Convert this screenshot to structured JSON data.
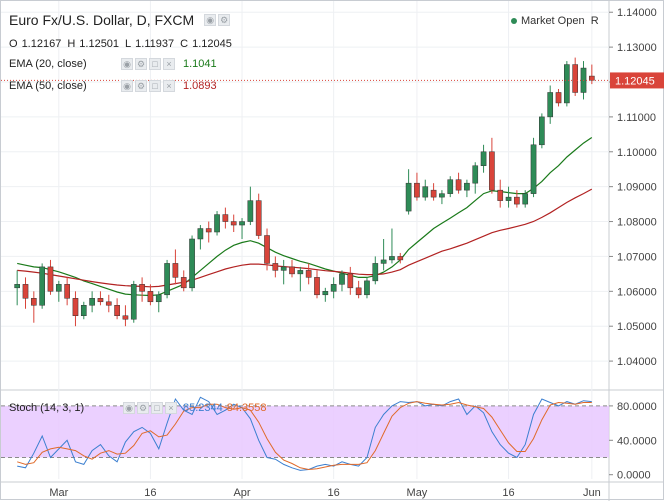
{
  "header": {
    "title": "Euro Fx/U.S. Dollar, D, FXCM",
    "market_status": "Market Open",
    "market_status_suffix": "R"
  },
  "ohlc": {
    "o_label": "O",
    "o": "1.12167",
    "h_label": "H",
    "h": "1.12501",
    "l_label": "L",
    "l": "1.11937",
    "c_label": "C",
    "c": "1.12045"
  },
  "indicators": {
    "ema20": {
      "label": "EMA (20, close)",
      "value": "1.1041",
      "color": "#1a7a1a"
    },
    "ema50": {
      "label": "EMA (50, close)",
      "value": "1.0893",
      "color": "#b22222"
    },
    "stoch": {
      "label": "Stoch (14, 3, 1)",
      "k": "85.2344",
      "d": "84.3558",
      "k_color": "#3b7fd0",
      "d_color": "#e06a2a"
    }
  },
  "price_label": "1.12045",
  "colors": {
    "up": "#2e8b57",
    "down": "#d9443a",
    "stoch_band": "#e7c8ff",
    "price_tag": "#d9443a"
  },
  "chart_data": [
    {
      "type": "candlestick",
      "title": "Euro Fx/U.S. Dollar, D, FXCM",
      "y_ticks": [
        "1.04000",
        "1.05000",
        "1.06000",
        "1.07000",
        "1.08000",
        "1.09000",
        "1.10000",
        "1.11000",
        "1.12000",
        "1.13000",
        "1.14000"
      ],
      "ylim": [
        1.032,
        1.1415
      ],
      "x_ticks": [
        "Mar",
        "16",
        "Apr",
        "16",
        "May",
        "16",
        "Jun"
      ],
      "candles": [
        [
          1.061,
          1.066,
          1.056,
          1.062
        ],
        [
          1.062,
          1.064,
          1.055,
          1.058
        ],
        [
          1.058,
          1.06,
          1.051,
          1.056
        ],
        [
          1.056,
          1.068,
          1.055,
          1.067
        ],
        [
          1.067,
          1.069,
          1.059,
          1.06
        ],
        [
          1.06,
          1.063,
          1.057,
          1.062
        ],
        [
          1.062,
          1.064,
          1.056,
          1.058
        ],
        [
          1.058,
          1.06,
          1.05,
          1.053
        ],
        [
          1.053,
          1.057,
          1.052,
          1.056
        ],
        [
          1.056,
          1.06,
          1.054,
          1.058
        ],
        [
          1.058,
          1.06,
          1.056,
          1.057
        ],
        [
          1.057,
          1.059,
          1.054,
          1.056
        ],
        [
          1.056,
          1.058,
          1.052,
          1.053
        ],
        [
          1.053,
          1.056,
          1.05,
          1.052
        ],
        [
          1.052,
          1.063,
          1.051,
          1.062
        ],
        [
          1.062,
          1.064,
          1.057,
          1.06
        ],
        [
          1.06,
          1.062,
          1.056,
          1.057
        ],
        [
          1.057,
          1.06,
          1.054,
          1.059
        ],
        [
          1.059,
          1.069,
          1.058,
          1.068
        ],
        [
          1.068,
          1.072,
          1.062,
          1.064
        ],
        [
          1.064,
          1.066,
          1.06,
          1.061
        ],
        [
          1.061,
          1.076,
          1.06,
          1.075
        ],
        [
          1.075,
          1.079,
          1.072,
          1.078
        ],
        [
          1.078,
          1.08,
          1.074,
          1.077
        ],
        [
          1.077,
          1.083,
          1.076,
          1.082
        ],
        [
          1.082,
          1.084,
          1.078,
          1.08
        ],
        [
          1.08,
          1.082,
          1.077,
          1.079
        ],
        [
          1.079,
          1.081,
          1.075,
          1.08
        ],
        [
          1.08,
          1.09,
          1.079,
          1.086
        ],
        [
          1.086,
          1.088,
          1.075,
          1.076
        ],
        [
          1.076,
          1.078,
          1.066,
          1.068
        ],
        [
          1.068,
          1.07,
          1.064,
          1.066
        ],
        [
          1.066,
          1.069,
          1.062,
          1.067
        ],
        [
          1.067,
          1.069,
          1.064,
          1.065
        ],
        [
          1.065,
          1.067,
          1.06,
          1.066
        ],
        [
          1.066,
          1.068,
          1.062,
          1.064
        ],
        [
          1.064,
          1.066,
          1.058,
          1.059
        ],
        [
          1.059,
          1.061,
          1.057,
          1.06
        ],
        [
          1.06,
          1.064,
          1.058,
          1.062
        ],
        [
          1.062,
          1.066,
          1.06,
          1.065
        ],
        [
          1.065,
          1.067,
          1.059,
          1.061
        ],
        [
          1.061,
          1.063,
          1.058,
          1.059
        ],
        [
          1.059,
          1.064,
          1.058,
          1.063
        ],
        [
          1.063,
          1.07,
          1.062,
          1.068
        ],
        [
          1.068,
          1.075,
          1.066,
          1.069
        ],
        [
          1.069,
          1.078,
          1.068,
          1.07
        ],
        [
          1.07,
          1.071,
          1.068,
          1.069
        ],
        [
          1.083,
          1.095,
          1.082,
          1.091
        ],
        [
          1.091,
          1.094,
          1.086,
          1.087
        ],
        [
          1.087,
          1.092,
          1.086,
          1.09
        ],
        [
          1.089,
          1.091,
          1.086,
          1.087
        ],
        [
          1.087,
          1.089,
          1.085,
          1.088
        ],
        [
          1.088,
          1.093,
          1.087,
          1.092
        ],
        [
          1.092,
          1.094,
          1.088,
          1.089
        ],
        [
          1.089,
          1.092,
          1.087,
          1.091
        ],
        [
          1.091,
          1.097,
          1.088,
          1.096
        ],
        [
          1.096,
          1.102,
          1.094,
          1.1
        ],
        [
          1.1,
          1.104,
          1.088,
          1.089
        ],
        [
          1.089,
          1.092,
          1.084,
          1.086
        ],
        [
          1.086,
          1.09,
          1.084,
          1.087
        ],
        [
          1.087,
          1.089,
          1.084,
          1.085
        ],
        [
          1.085,
          1.089,
          1.084,
          1.088
        ],
        [
          1.088,
          1.104,
          1.087,
          1.102
        ],
        [
          1.102,
          1.111,
          1.101,
          1.11
        ],
        [
          1.11,
          1.119,
          1.108,
          1.117
        ],
        [
          1.117,
          1.118,
          1.113,
          1.114
        ],
        [
          1.114,
          1.126,
          1.113,
          1.125
        ],
        [
          1.125,
          1.127,
          1.116,
          1.117
        ],
        [
          1.117,
          1.126,
          1.115,
          1.124
        ],
        [
          1.1217,
          1.125,
          1.1194,
          1.1205
        ]
      ],
      "series": [
        {
          "name": "EMA (20, close)",
          "values": [
            1.068,
            1.0675,
            1.067,
            1.0668,
            1.0662,
            1.0656,
            1.0648,
            1.064,
            1.063,
            1.0622,
            1.0614,
            1.0606,
            1.0598,
            1.0592,
            1.059,
            1.0589,
            1.0588,
            1.059,
            1.06,
            1.061,
            1.062,
            1.064,
            1.066,
            1.068,
            1.07,
            1.0718,
            1.0732,
            1.074,
            1.0745,
            1.0738,
            1.0725,
            1.0712,
            1.0702,
            1.0694,
            1.0686,
            1.068,
            1.0672,
            1.0664,
            1.0658,
            1.0652,
            1.0646,
            1.064,
            1.064,
            1.0645,
            1.0655,
            1.067,
            1.069,
            1.072,
            1.074,
            1.076,
            1.078,
            1.0795,
            1.081,
            1.0825,
            1.084,
            1.086,
            1.088,
            1.0888,
            1.0886,
            1.0883,
            1.088,
            1.088,
            1.0895,
            1.0915,
            1.094,
            1.096,
            1.0985,
            1.1005,
            1.1025,
            1.1041
          ]
        },
        {
          "name": "EMA (50, close)",
          "values": [
            1.066,
            1.0658,
            1.0655,
            1.0652,
            1.0648,
            1.0644,
            1.064,
            1.0636,
            1.0632,
            1.0628,
            1.0624,
            1.0621,
            1.0618,
            1.0616,
            1.0615,
            1.0614,
            1.0613,
            1.0614,
            1.0618,
            1.0622,
            1.0626,
            1.0632,
            1.064,
            1.0648,
            1.0656,
            1.0664,
            1.067,
            1.0675,
            1.0678,
            1.0678,
            1.0676,
            1.0673,
            1.0671,
            1.0669,
            1.0667,
            1.0665,
            1.0662,
            1.0659,
            1.0657,
            1.0655,
            1.0652,
            1.0649,
            1.0648,
            1.0648,
            1.065,
            1.0655,
            1.0662,
            1.0675,
            1.0685,
            1.0695,
            1.0705,
            1.0715,
            1.0722,
            1.073,
            1.0738,
            1.0748,
            1.0758,
            1.0768,
            1.0775,
            1.078,
            1.0786,
            1.0792,
            1.08,
            1.0812,
            1.0825,
            1.084,
            1.0855,
            1.0868,
            1.088,
            1.0893
          ]
        }
      ]
    },
    {
      "type": "line",
      "title": "Stoch (14, 3, 1)",
      "y_ticks": [
        "0.0000",
        "40.0000",
        "80.0000"
      ],
      "ylim": [
        -5,
        95
      ],
      "band": [
        20,
        80
      ],
      "series": [
        {
          "name": "%K",
          "values": [
            10,
            8,
            25,
            45,
            20,
            30,
            40,
            15,
            12,
            28,
            35,
            22,
            15,
            38,
            50,
            55,
            48,
            30,
            60,
            88,
            75,
            70,
            90,
            85,
            70,
            75,
            82,
            78,
            65,
            40,
            20,
            18,
            12,
            8,
            5,
            6,
            10,
            12,
            10,
            15,
            12,
            10,
            20,
            55,
            70,
            80,
            85,
            84,
            85,
            80,
            82,
            80,
            85,
            88,
            70,
            80,
            72,
            50,
            35,
            25,
            20,
            35,
            70,
            88,
            84,
            80,
            85,
            82,
            86,
            85
          ]
        },
        {
          "name": "%D",
          "values": [
            15,
            12,
            14,
            26,
            30,
            32,
            30,
            28,
            22,
            18,
            25,
            28,
            24,
            25,
            34,
            48,
            51,
            44,
            46,
            59,
            74,
            78,
            78,
            82,
            82,
            78,
            76,
            78,
            75,
            61,
            42,
            26,
            17,
            13,
            8,
            6,
            7,
            9,
            11,
            12,
            12,
            12,
            14,
            28,
            48,
            68,
            78,
            83,
            85,
            83,
            82,
            81,
            82,
            84,
            81,
            79,
            77,
            67,
            52,
            37,
            27,
            27,
            42,
            64,
            81,
            84,
            83,
            82,
            84,
            84
          ]
        }
      ]
    }
  ]
}
